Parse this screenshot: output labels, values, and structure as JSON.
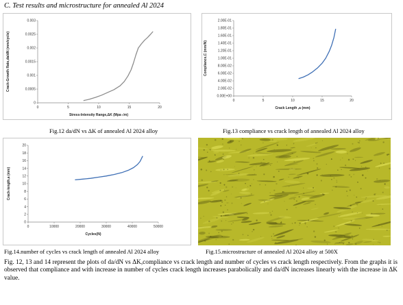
{
  "heading": "C. Test results and microstructure for annealed Al 2024",
  "figures": {
    "fig12_caption": "Fig.12 da/dN vs ΔK of annealed Al 2024 alloy",
    "fig13_caption": "Fig.13 compliance vs crack length of annealed Al 2024 alloy",
    "fig14_caption": "Fig.14.number of cycles vs crack length of annealed Al 2024 alloy",
    "fig15_caption": "Fig.15.microstructure of annealed Al 2024 alloy at 500X"
  },
  "paragraph": "Fig. 12, 13 and 14 represent the plots of da/dN vs ΔK,compliance vs crack length and number of cycles vs crack length respectively. From the graphs it is observed that compliance and with increase in number of cycles crack length increases parabolically and da/dN increases linearly with the increase in ΔK value.",
  "chart_data": [
    {
      "type": "line",
      "xlabel": "Stress-Intensity Range,ΔK (Mpa √m)",
      "ylabel": "Crack-Growth Rate,da/dN (mm/cycle)",
      "xlim": [
        0,
        20
      ],
      "ylim": [
        0,
        0.003
      ],
      "x_ticks": [
        "0",
        "5",
        "10",
        "15",
        "20"
      ],
      "y_ticks": [
        "0",
        "0.0005",
        "0.001",
        "0.0015",
        "0.002",
        "0.0025",
        "0.003"
      ],
      "grid": false,
      "line_color": "#8c8c8c",
      "series": [
        {
          "x": [
            7.5,
            8.5,
            9.5,
            10.5,
            11.5,
            12.5,
            13.5,
            14.2,
            14.8,
            15.3,
            15.7,
            16.1,
            16.5,
            17.0,
            17.5,
            18.0,
            18.5,
            18.9
          ],
          "y": [
            8e-05,
            0.00013,
            0.0002,
            0.00028,
            0.00038,
            0.00048,
            0.00062,
            0.00078,
            0.00098,
            0.0012,
            0.00145,
            0.00175,
            0.002,
            0.00215,
            0.00228,
            0.00238,
            0.0025,
            0.0026
          ]
        }
      ]
    },
    {
      "type": "line",
      "xlabel": "Crack Length ,a (mm)",
      "ylabel": "Compliance,C (mm/N)",
      "xlim": [
        0,
        20
      ],
      "ylim": [
        0,
        0.2
      ],
      "x_ticks": [
        "0",
        "5",
        "10",
        "15",
        "20"
      ],
      "y_ticks": [
        "0.00E+00",
        "2.00E-02",
        "4.00E-02",
        "6.00E-02",
        "8.00E-02",
        "1.00E-01",
        "1.20E-01",
        "1.40E-01",
        "1.60E-01",
        "1.80E-01",
        "2.00E-01"
      ],
      "grid": false,
      "line_color": "#3e6fb5",
      "series": [
        {
          "x": [
            11.0,
            11.8,
            12.6,
            13.4,
            14.2,
            15.0,
            15.6,
            16.2,
            16.6,
            17.0,
            17.3
          ],
          "y": [
            0.046,
            0.05,
            0.056,
            0.064,
            0.074,
            0.087,
            0.1,
            0.118,
            0.134,
            0.155,
            0.178
          ]
        }
      ]
    },
    {
      "type": "line",
      "xlabel": "Cycles(N)",
      "ylabel": "Crack-length,a (mm)",
      "xlim": [
        0,
        50000
      ],
      "ylim": [
        0,
        20
      ],
      "x_ticks": [
        "0",
        "10000",
        "20000",
        "30000",
        "40000",
        "50000"
      ],
      "y_ticks": [
        "0",
        "2",
        "4",
        "6",
        "8",
        "10",
        "12",
        "14",
        "16",
        "18",
        "20"
      ],
      "grid": false,
      "line_color": "#3e6fb5",
      "series": [
        {
          "x": [
            18000,
            21000,
            24000,
            27000,
            30000,
            33000,
            36000,
            38500,
            40500,
            42000,
            43000,
            43500,
            44000
          ],
          "y": [
            11.0,
            11.2,
            11.4,
            11.7,
            12.0,
            12.4,
            12.9,
            13.5,
            14.2,
            15.0,
            15.8,
            16.5,
            17.2
          ]
        }
      ]
    }
  ],
  "photo": {
    "base_color": "#b8b82a",
    "dark_color": "#5a5a14",
    "light_color": "#e2e25a"
  }
}
